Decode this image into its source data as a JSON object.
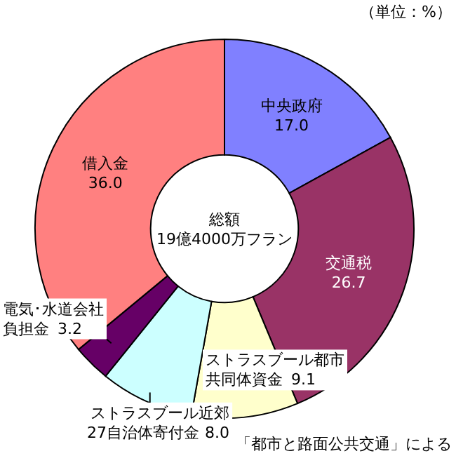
{
  "chart_data": {
    "type": "donut",
    "categories": [
      "中央政府",
      "交通税",
      "ストラスブール都市共同体資金",
      "ストラスブール近郊27自治体寄付金",
      "電気･水道会社負担金",
      "借入金"
    ],
    "values": [
      17.0,
      26.7,
      9.1,
      8.0,
      3.2,
      36.0
    ],
    "colors": [
      "#8080ff",
      "#993366",
      "#ffffcc",
      "#ccffff",
      "#660066",
      "#ff8080"
    ],
    "value_labels": [
      "17.0",
      "26.7",
      "9.1",
      "8.0",
      "3.2",
      "36.0"
    ],
    "annotations": [
      "総額\n19億4000万フラン",
      "（単位：%）",
      "「都市と路面公共交通」による"
    ]
  }
}
